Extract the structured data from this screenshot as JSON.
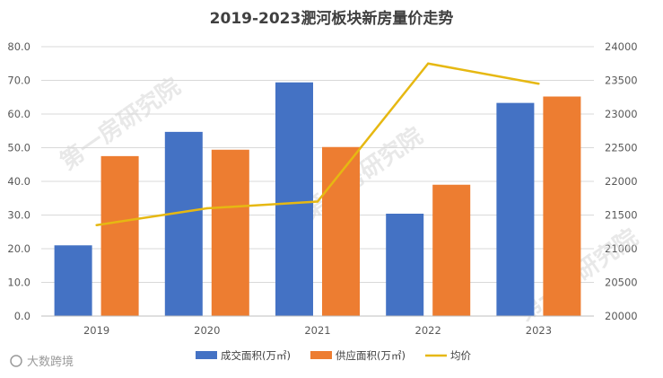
{
  "chart_data": {
    "type": "bar+line",
    "title": "2019-2023淝河板块新房量价走势",
    "categories": [
      "2019",
      "2020",
      "2021",
      "2022",
      "2023"
    ],
    "series": [
      {
        "name": "成交面积(万㎡)",
        "axis": "left",
        "type": "bar",
        "color": "#4472C4",
        "values": [
          21.0,
          54.7,
          69.4,
          30.4,
          63.3
        ]
      },
      {
        "name": "供应面积(万㎡)",
        "axis": "left",
        "type": "bar",
        "color": "#ED7D31",
        "values": [
          47.5,
          49.4,
          50.2,
          39.0,
          65.2
        ]
      },
      {
        "name": "均价",
        "axis": "right",
        "type": "line",
        "color": "#E6B812",
        "values": [
          21350,
          21600,
          21700,
          23750,
          23450
        ]
      }
    ],
    "ylim_left": [
      0,
      80
    ],
    "yticks_left": [
      "0.0",
      "10.0",
      "20.0",
      "30.0",
      "40.0",
      "50.0",
      "60.0",
      "70.0",
      "80.0"
    ],
    "ylim_right": [
      20000,
      24000
    ],
    "yticks_right": [
      "20000",
      "20500",
      "21000",
      "21500",
      "22000",
      "22500",
      "23000",
      "23500",
      "24000"
    ],
    "grid": true,
    "legend": "bottom"
  },
  "watermarks": [
    "第一房研究院",
    "第一房研究院",
    "第一房研究院"
  ],
  "footer_mark": "大数跨境",
  "colors": {
    "grid": "#d9d9d9",
    "axis": "#bfbfbf"
  }
}
